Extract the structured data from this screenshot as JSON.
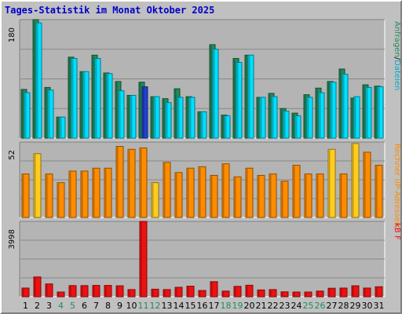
{
  "title": "Tages-Statistik im Monat Oktober 2025",
  "colors": {
    "background": "#c0c0c0",
    "plot_bg": "#b4b4b4",
    "title": "#0000cc",
    "anfragen": "#228b5a",
    "dateien": "#00e0ff",
    "dateien_highlight": "#2040d0",
    "rechner": "#ff8c00",
    "ip_adressen": "#ffff40",
    "kb": "#ee1111",
    "weekend_label": "#228b5a",
    "grid": "#888888"
  },
  "chart_data": {
    "type": "bar",
    "title": "Tages-Statistik im Monat Oktober 2025",
    "days": [
      "1",
      "2",
      "3",
      "4",
      "5",
      "6",
      "7",
      "8",
      "9",
      "10",
      "11",
      "12",
      "13",
      "14",
      "15",
      "16",
      "17",
      "18",
      "19",
      "20",
      "21",
      "22",
      "23",
      "24",
      "25",
      "26",
      "27",
      "28",
      "29",
      "30",
      "31"
    ],
    "weekend_days": [
      "4",
      "5",
      "11",
      "12",
      "18",
      "19",
      "25",
      "26"
    ],
    "grid": true,
    "panels": [
      {
        "id": "hits",
        "ymax_label": "180",
        "ymax": 180,
        "right_label": "Anfragen / Dateien",
        "right_parts": [
          {
            "text": "Anfragen",
            "color": "#228b5a"
          },
          {
            "text": "/",
            "color": "#000000"
          },
          {
            "text": "Dateien",
            "color": "#00aacc"
          }
        ],
        "series": [
          {
            "name": "Anfragen",
            "color": "#228b5a",
            "values": [
              74,
              183,
              77,
              32,
              123,
              101,
              126,
              99,
              86,
              65,
              85,
              63,
              60,
              75,
              63,
              40,
              142,
              35,
              121,
              126,
              62,
              68,
              45,
              38,
              66,
              76,
              86,
              105,
              61,
              81,
              79
            ]
          },
          {
            "name": "Dateien",
            "color": "#00e0ff",
            "values": [
              69,
              175,
              73,
              32,
              121,
              101,
              121,
              98,
              72,
              65,
              78,
              63,
              54,
              62,
              62,
              40,
              135,
              34,
              115,
              126,
              62,
              63,
              41,
              34,
              62,
              69,
              85,
              97,
              63,
              77,
              78
            ]
          }
        ]
      },
      {
        "id": "visits",
        "ymax_label": "52",
        "ymax": 52,
        "right_label": "Rechner (IP-Adressen)",
        "right_parts": [
          {
            "text": "Rechner (IP-Adressen)",
            "color": "#ff8c00"
          }
        ],
        "series": [
          {
            "name": "Rechner (IP-Adressen)",
            "color": "#ff8c00",
            "values": [
              30,
              44,
              30,
              24,
              32,
              32,
              34,
              34,
              49,
              47,
              48,
              24,
              38,
              31,
              34,
              35,
              29,
              37,
              28,
              34,
              29,
              30,
              25,
              36,
              30,
              30,
              47,
              30,
              51,
              45,
              36
            ]
          }
        ]
      },
      {
        "id": "kb",
        "ymax_label": "3998",
        "ymax": 3998,
        "right_label": "kB F",
        "right_parts": [
          {
            "text": "kB F",
            "color": "#ee1111"
          }
        ],
        "series": [
          {
            "name": "kB F",
            "color": "#ee1111",
            "values": [
              460,
              1050,
              680,
              250,
              590,
              590,
              600,
              600,
              580,
              380,
              3998,
              400,
              380,
              500,
              560,
              330,
              800,
              300,
              550,
              610,
              360,
              380,
              260,
              250,
              250,
              300,
              450,
              460,
              580,
              460,
              530
            ]
          }
        ]
      }
    ]
  }
}
